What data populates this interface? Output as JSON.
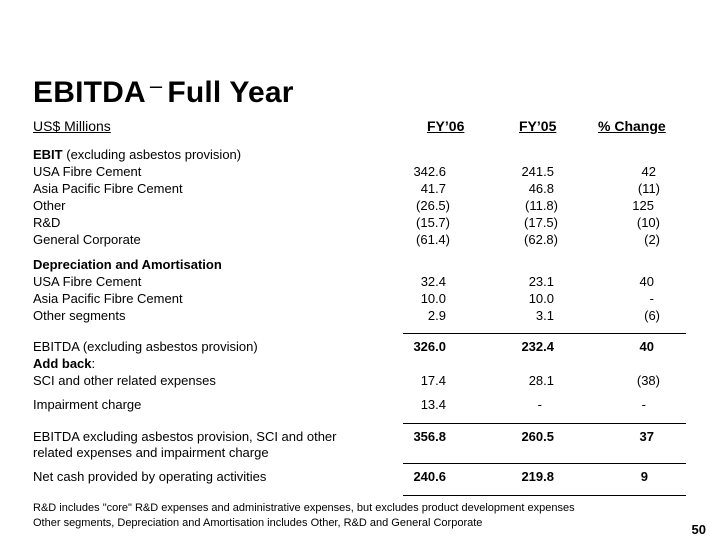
{
  "slide": {
    "title_main": "EBITDA",
    "title_dash": "–",
    "title_rest": "Full Year",
    "units_label": "US$ Millions",
    "page_number": "50"
  },
  "columns": [
    "FY’06",
    "FY’05",
    "% Change"
  ],
  "sections": {
    "ebit": {
      "heading_bold": "EBIT",
      "heading_rest": " (excluding asbestos provision)",
      "rows": [
        {
          "label": "USA Fibre Cement",
          "fy06": "342.6",
          "fy05": "241.5",
          "change": "42"
        },
        {
          "label": "Asia Pacific Fibre Cement",
          "fy06": "41.7",
          "fy05": "46.8",
          "change": "(11)"
        },
        {
          "label": "Other",
          "fy06": "(26.5)",
          "fy05": "(11.8)",
          "change": "125"
        },
        {
          "label": "R&D",
          "fy06": "(15.7)",
          "fy05": "(17.5)",
          "change": "(10)"
        },
        {
          "label": "General Corporate",
          "fy06": "(61.4)",
          "fy05": "(62.8)",
          "change": "(2)"
        }
      ]
    },
    "da": {
      "heading": "Depreciation and Amortisation",
      "rows": [
        {
          "label": "USA Fibre Cement",
          "fy06": "32.4",
          "fy05": "23.1",
          "change": "40"
        },
        {
          "label": "Asia Pacific Fibre Cement",
          "fy06": "10.0",
          "fy05": "10.0",
          "change": "-"
        },
        {
          "label": "Other segments",
          "fy06": "2.9",
          "fy05": "3.1",
          "change": "(6)"
        }
      ]
    },
    "ebitda": {
      "label": "EBITDA (excluding asbestos provision)",
      "fy06": "326.0",
      "fy05": "232.4",
      "change": "40",
      "addback_bold": "Add back",
      "addback_rest": ":",
      "sci": {
        "label": "SCI and other related expenses",
        "fy06": "17.4",
        "fy05": "28.1",
        "change": "(38)"
      },
      "impairment": {
        "label": "Impairment charge",
        "fy06": "13.4",
        "fy05": "-",
        "change": "-"
      }
    },
    "ebitda_ex": {
      "label_line1": "EBITDA excluding asbestos provision, SCI and other",
      "label_line2": "related expenses and impairment charge",
      "fy06": "356.8",
      "fy05": "260.5",
      "change": "37"
    },
    "net_cash": {
      "label": "Net cash provided by operating activities",
      "fy06": "240.6",
      "fy05": "219.8",
      "change": "9"
    }
  },
  "footnotes": [
    "R&D includes \"core\" R&D expenses and administrative expenses, but excludes product development expenses",
    "Other segments, Depreciation and Amortisation includes Other, R&D and General Corporate"
  ]
}
